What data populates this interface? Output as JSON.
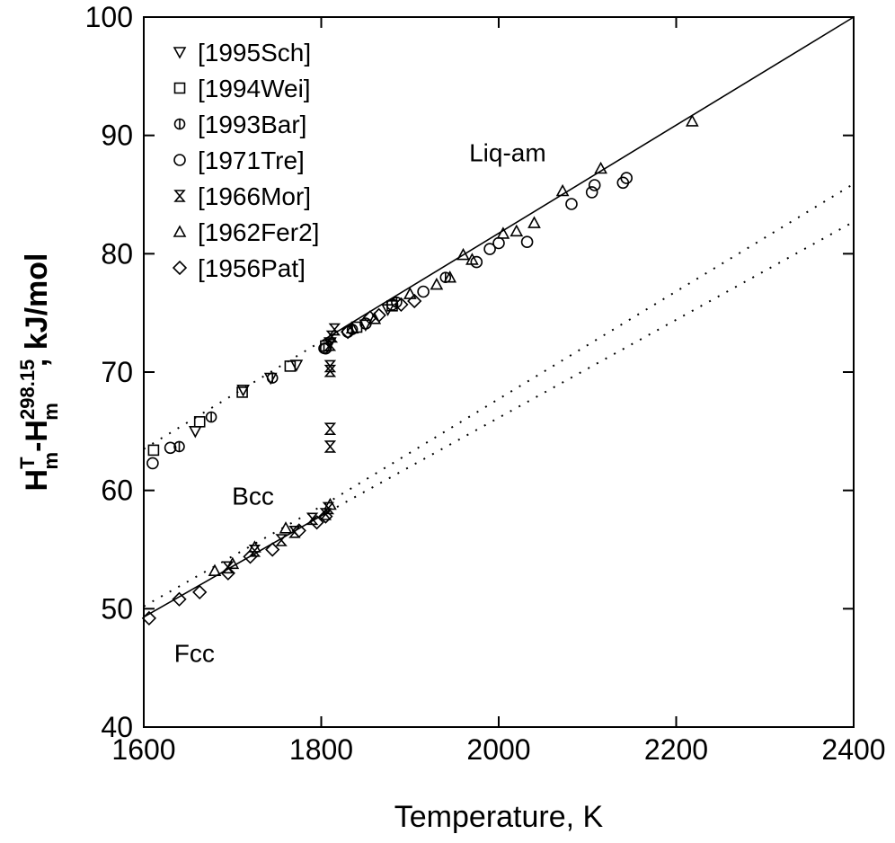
{
  "chart_data": {
    "type": "scatter",
    "xlabel": "Temperature, K",
    "ylabel": {
      "main": "H",
      "sup1": "T",
      "sub1": "m",
      "dash": "-H",
      "sup2": "298.15",
      "sub2": "m",
      "unit": ", kJ/mol"
    },
    "xlim": [
      1600,
      2400
    ],
    "ylim": [
      40,
      100
    ],
    "x_ticks": [
      1600,
      1800,
      2000,
      2200,
      2400
    ],
    "y_ticks": [
      40,
      50,
      60,
      70,
      80,
      90,
      100
    ],
    "grid": false,
    "legend_position": "top-left",
    "curve_labels": [
      {
        "text": "Liq-am",
        "x": 2010,
        "y": 87.8
      },
      {
        "text": "Bcc",
        "x": 1723,
        "y": 58.8
      },
      {
        "text": "Fcc",
        "x": 1657,
        "y": 45.5
      }
    ],
    "lines": [
      {
        "phase": "Liq-am",
        "style": "solid",
        "points": [
          [
            1800,
            72.6
          ],
          [
            2400,
            100
          ]
        ]
      },
      {
        "phase": "Liq-am",
        "style": "dotted",
        "points": [
          [
            1600,
            63.5
          ],
          [
            1800,
            72.6
          ]
        ]
      },
      {
        "phase": "Fcc",
        "style": "solid",
        "points": [
          [
            1600,
            49.3
          ],
          [
            1808,
            58.2
          ]
        ]
      },
      {
        "phase": "Fcc",
        "style": "dotted",
        "points": [
          [
            1808,
            58.2
          ],
          [
            2400,
            82.7
          ]
        ]
      },
      {
        "phase": "Bcc",
        "style": "dotted",
        "points": [
          [
            1600,
            50.2
          ],
          [
            1808,
            59.0
          ],
          [
            2400,
            85.9
          ]
        ]
      }
    ],
    "series": [
      {
        "name": "[1995Sch]",
        "marker": "triangle-down",
        "points": [
          [
            1658,
            65.0
          ],
          [
            1712,
            68.5
          ],
          [
            1743,
            69.5
          ],
          [
            1772,
            70.6
          ],
          [
            1810,
            72.5
          ],
          [
            1850,
            74.0
          ],
          [
            1875,
            75.3
          ]
        ]
      },
      {
        "name": "[1994Wei]",
        "marker": "square",
        "points": [
          [
            1611,
            63.4
          ],
          [
            1663,
            65.8
          ],
          [
            1711,
            68.3
          ],
          [
            1765,
            70.5
          ],
          [
            1805,
            72.2
          ],
          [
            1840,
            73.8
          ],
          [
            1880,
            75.6
          ]
        ]
      },
      {
        "name": "[1993Bar]",
        "marker": "circle-slash",
        "points": [
          [
            1640,
            63.7
          ],
          [
            1676,
            66.2
          ],
          [
            1745,
            69.5
          ],
          [
            1803,
            72.0
          ],
          [
            1835,
            73.6
          ],
          [
            1885,
            75.9
          ],
          [
            1940,
            78.0
          ]
        ]
      },
      {
        "name": "[1971Tre]",
        "marker": "circle",
        "points": [
          [
            1610,
            62.3
          ],
          [
            1630,
            63.6
          ],
          [
            1805,
            72.0
          ],
          [
            1830,
            73.4
          ],
          [
            1850,
            74.1
          ],
          [
            1880,
            75.7
          ],
          [
            1915,
            76.8
          ],
          [
            1975,
            79.3
          ],
          [
            1990,
            80.4
          ],
          [
            2000,
            80.9
          ],
          [
            2032,
            81.0
          ],
          [
            2082,
            84.2
          ],
          [
            2105,
            85.2
          ],
          [
            2108,
            85.8
          ],
          [
            2140,
            86.0
          ],
          [
            2144,
            86.4
          ]
        ]
      },
      {
        "name": "[1966Mor]",
        "marker": "hourglass",
        "points": [
          [
            1810,
            63.7
          ],
          [
            1810,
            65.2
          ],
          [
            1810,
            70.1
          ],
          [
            1810,
            70.5
          ],
          [
            1810,
            72.3
          ],
          [
            1812,
            73.0
          ],
          [
            1815,
            73.6
          ],
          [
            1808,
            58.5
          ],
          [
            1805,
            58.0
          ],
          [
            1790,
            57.6
          ],
          [
            1770,
            56.5
          ],
          [
            1755,
            55.8
          ],
          [
            1725,
            54.9
          ],
          [
            1695,
            53.5
          ]
        ]
      },
      {
        "name": "[1962Fer2]",
        "marker": "triangle-up",
        "points": [
          [
            1680,
            53.2
          ],
          [
            1700,
            53.8
          ],
          [
            1725,
            55.2
          ],
          [
            1760,
            56.8
          ],
          [
            1810,
            58.8
          ],
          [
            1835,
            73.7
          ],
          [
            1860,
            74.5
          ],
          [
            1900,
            76.6
          ],
          [
            1930,
            77.4
          ],
          [
            1945,
            78.0
          ],
          [
            1960,
            79.9
          ],
          [
            1970,
            79.5
          ],
          [
            2005,
            81.7
          ],
          [
            2020,
            81.9
          ],
          [
            2040,
            82.6
          ],
          [
            2072,
            85.3
          ],
          [
            2115,
            87.2
          ],
          [
            2218,
            91.2
          ]
        ]
      },
      {
        "name": "[1956Pat]",
        "marker": "diamond",
        "points": [
          [
            1606,
            49.2
          ],
          [
            1640,
            50.8
          ],
          [
            1663,
            51.4
          ],
          [
            1695,
            53.0
          ],
          [
            1720,
            54.4
          ],
          [
            1745,
            55.0
          ],
          [
            1775,
            56.6
          ],
          [
            1795,
            57.3
          ],
          [
            1805,
            57.8
          ],
          [
            1830,
            73.4
          ],
          [
            1855,
            74.6
          ],
          [
            1865,
            74.8
          ],
          [
            1890,
            75.7
          ],
          [
            1905,
            76.0
          ]
        ]
      }
    ]
  }
}
